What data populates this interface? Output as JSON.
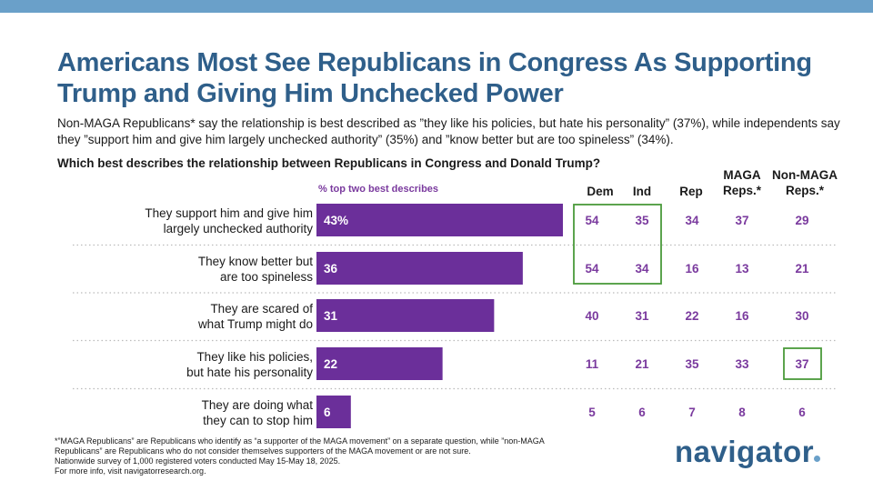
{
  "title": "Americans Most See Republicans in Congress As Supporting Trump and Giving Him Unchecked Power",
  "subtitle": "Non-MAGA Republicans* say the relationship is best described as ”they like his policies, but hate his personality” (37%), while independents say they ”support him and give him largely unchecked authority” (35%) and ”know better but are too spineless” (34%).",
  "question": "Which best describes the relationship between Republicans in Congress and Donald Trump?",
  "bar_header": "% top two best describes",
  "column_headers": [
    "Dem",
    "Ind",
    "Rep",
    "MAGA Reps.*",
    "Non-MAGA Reps.*"
  ],
  "footnotes": [
    "*”MAGA Republicans” are Republicans who identify as “a supporter of the MAGA movement” on a separate question, while ”non-MAGA Republicans” are Republicans who do not consider themselves supporters of the MAGA movement or are not sure.",
    "Nationwide survey of 1,000 registered voters conducted May 15-May 18, 2025.",
    "For more info, visit navigatorresearch.org."
  ],
  "logo_text": "navigator",
  "colors": {
    "bar": "#6b2f9a",
    "accent_text": "#7a3a9e",
    "title": "#2f5f8a",
    "highlight_box": "#4a9a3a",
    "separator": "#bbbbbb"
  },
  "chart_data": {
    "type": "bar",
    "orientation": "horizontal",
    "title": "Which best describes the relationship between Republicans in Congress and Donald Trump?",
    "categories": [
      [
        "They support him and give him",
        "largely unchecked authority"
      ],
      [
        "They know better but",
        "are too spineless"
      ],
      [
        "They are scared of",
        "what Trump might do"
      ],
      [
        "They like his policies,",
        "but hate his personality"
      ],
      [
        "They are doing what",
        "they can to stop him"
      ]
    ],
    "values": [
      43,
      36,
      31,
      22,
      6
    ],
    "value_labels": [
      "43%",
      "36",
      "31",
      "22",
      "6"
    ],
    "xlim": [
      0,
      43
    ],
    "table": {
      "columns": [
        "Dem",
        "Ind",
        "Rep",
        "MAGA Reps.*",
        "Non-MAGA Reps.*"
      ],
      "rows": [
        [
          54,
          35,
          34,
          37,
          29
        ],
        [
          54,
          34,
          16,
          13,
          21
        ],
        [
          40,
          31,
          22,
          16,
          30
        ],
        [
          11,
          21,
          35,
          33,
          37
        ],
        [
          5,
          6,
          7,
          8,
          6
        ]
      ]
    },
    "highlights": [
      {
        "columns": [
          "Dem",
          "Ind"
        ],
        "rows": [
          0,
          1
        ]
      },
      {
        "columns": [
          "Non-MAGA Reps.*"
        ],
        "rows": [
          3
        ]
      }
    ]
  }
}
